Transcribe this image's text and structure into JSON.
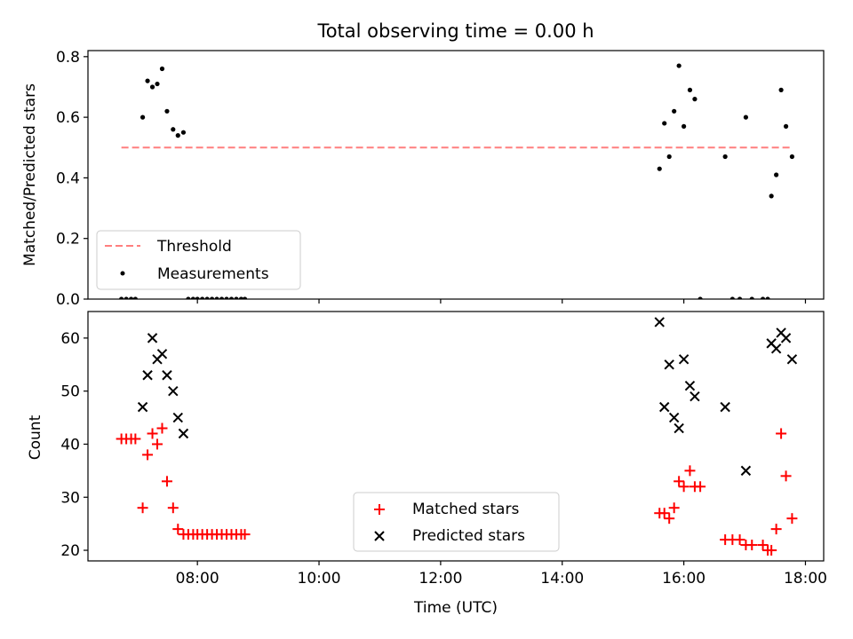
{
  "figure": {
    "title": "Total observing time = 0.00 h"
  },
  "chart_data": [
    {
      "type": "scatter",
      "panel": "top",
      "ylabel": "Matched/Predicted stars",
      "xlim": [
        6.2,
        18.3
      ],
      "ylim": [
        0,
        0.82
      ],
      "yticks": [
        0.0,
        0.2,
        0.4,
        0.6,
        0.8
      ],
      "ytick_labels": [
        "0.0",
        "0.2",
        "0.4",
        "0.6",
        "0.8"
      ],
      "xticks": [
        8,
        10,
        12,
        14,
        16,
        18
      ],
      "show_xtick_labels": false,
      "legend_position": "lower-left",
      "legend": [
        {
          "label": "Threshold",
          "marker": "dashed-line",
          "color": "#ff7f7f"
        },
        {
          "label": "Measurements",
          "marker": "dot",
          "color": "#000000"
        }
      ],
      "threshold": {
        "label": "Threshold",
        "y": 0.5,
        "x_start": 6.75,
        "x_end": 17.78,
        "color": "#ff7f7f"
      },
      "series": [
        {
          "name": "Measurements",
          "marker": "dot",
          "color": "#000000",
          "x": [
            6.75,
            6.83,
            6.91,
            6.98,
            7.1,
            7.18,
            7.26,
            7.34,
            7.42,
            7.5,
            7.6,
            7.68,
            7.77,
            7.85,
            7.93,
            8.0,
            8.08,
            8.16,
            8.24,
            8.32,
            8.4,
            8.48,
            8.56,
            8.64,
            8.72,
            8.78,
            15.6,
            15.68,
            15.76,
            15.84,
            15.92,
            16.0,
            16.1,
            16.18,
            16.27,
            16.68,
            16.8,
            16.92,
            17.02,
            17.12,
            17.3,
            17.38,
            17.44,
            17.52,
            17.6,
            17.68,
            17.78
          ],
          "y": [
            0.0,
            0.0,
            0.0,
            0.0,
            0.6,
            0.72,
            0.7,
            0.71,
            0.76,
            0.62,
            0.56,
            0.54,
            0.55,
            0.0,
            0.0,
            0.0,
            0.0,
            0.0,
            0.0,
            0.0,
            0.0,
            0.0,
            0.0,
            0.0,
            0.0,
            0.0,
            0.43,
            0.58,
            0.47,
            0.62,
            0.77,
            0.57,
            0.69,
            0.66,
            0.0,
            0.47,
            0.0,
            0.0,
            0.6,
            0.0,
            0.0,
            0.0,
            0.34,
            0.41,
            0.69,
            0.57,
            0.47
          ]
        }
      ]
    },
    {
      "type": "scatter",
      "panel": "bottom",
      "xlabel": "Time (UTC)",
      "ylabel": "Count",
      "xlim": [
        6.2,
        18.3
      ],
      "ylim": [
        18,
        65
      ],
      "yticks": [
        20,
        30,
        40,
        50,
        60
      ],
      "ytick_labels": [
        "20",
        "30",
        "40",
        "50",
        "60"
      ],
      "xticks": [
        8,
        10,
        12,
        14,
        16,
        18
      ],
      "xtick_labels": [
        "08:00",
        "10:00",
        "12:00",
        "14:00",
        "16:00",
        "18:00"
      ],
      "legend_position": "lower-center",
      "legend": [
        {
          "label": "Matched stars",
          "marker": "plus",
          "color": "#ff0000"
        },
        {
          "label": "Predicted stars",
          "marker": "x",
          "color": "#000000"
        }
      ],
      "series": [
        {
          "name": "Matched stars",
          "marker": "plus",
          "color": "#ff0000",
          "x": [
            6.75,
            6.83,
            6.91,
            6.98,
            7.1,
            7.18,
            7.26,
            7.34,
            7.42,
            7.5,
            7.6,
            7.68,
            7.77,
            7.85,
            7.93,
            8.0,
            8.08,
            8.16,
            8.24,
            8.32,
            8.4,
            8.48,
            8.56,
            8.64,
            8.72,
            8.78,
            15.6,
            15.68,
            15.76,
            15.84,
            15.92,
            16.0,
            16.1,
            16.18,
            16.27,
            16.68,
            16.8,
            16.92,
            17.02,
            17.12,
            17.3,
            17.38,
            17.44,
            17.52,
            17.6,
            17.68,
            17.78
          ],
          "y": [
            41,
            41,
            41,
            41,
            28,
            38,
            42,
            40,
            43,
            33,
            28,
            24,
            23,
            23,
            23,
            23,
            23,
            23,
            23,
            23,
            23,
            23,
            23,
            23,
            23,
            23,
            27,
            27,
            26,
            28,
            33,
            32,
            35,
            32,
            32,
            22,
            22,
            22,
            21,
            21,
            21,
            20,
            20,
            24,
            42,
            34,
            26
          ]
        },
        {
          "name": "Predicted stars",
          "marker": "x",
          "color": "#000000",
          "x": [
            7.1,
            7.18,
            7.26,
            7.34,
            7.42,
            7.5,
            7.6,
            7.68,
            7.77,
            15.6,
            15.68,
            15.76,
            15.84,
            15.92,
            16.0,
            16.1,
            16.18,
            16.68,
            17.02,
            17.44,
            17.52,
            17.6,
            17.68,
            17.78
          ],
          "y": [
            47,
            53,
            60,
            56,
            57,
            53,
            50,
            45,
            42,
            63,
            47,
            55,
            45,
            43,
            56,
            51,
            49,
            47,
            35,
            59,
            58,
            61,
            60,
            56
          ]
        }
      ]
    }
  ]
}
